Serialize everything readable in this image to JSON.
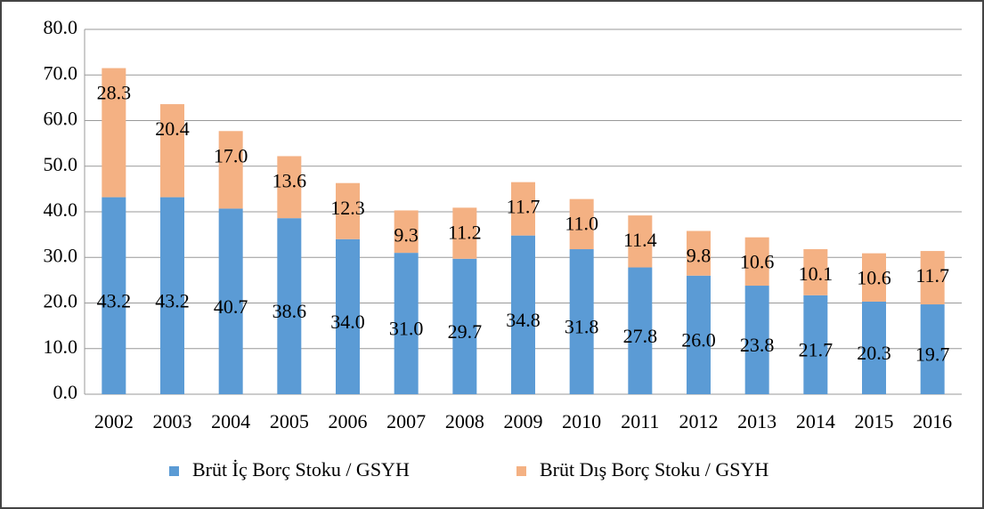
{
  "chart_data": {
    "type": "stacked_bar",
    "categories": [
      "2002",
      "2003",
      "2004",
      "2005",
      "2006",
      "2007",
      "2008",
      "2009",
      "2010",
      "2011",
      "2012",
      "2013",
      "2014",
      "2015",
      "2016"
    ],
    "series": [
      {
        "name": "Brüt İç Borç Stoku / GSYH",
        "color": "#5b9bd5",
        "values": [
          43.2,
          43.2,
          40.7,
          38.6,
          34.0,
          31.0,
          29.7,
          34.8,
          31.8,
          27.8,
          26.0,
          23.8,
          21.7,
          20.3,
          19.7
        ],
        "value_labels": [
          "43.2",
          "43.2",
          "40.7",
          "38.6",
          "34.0",
          "31.0",
          "29.7",
          "34.8",
          "31.8",
          "27.8",
          "26.0",
          "23.8",
          "21.7",
          "20.3",
          "19.7"
        ]
      },
      {
        "name": "Brüt Dış Borç Stoku / GSYH",
        "color": "#f4b183",
        "values": [
          28.3,
          20.4,
          17.0,
          13.6,
          12.3,
          9.3,
          11.2,
          11.7,
          11.0,
          11.4,
          9.8,
          10.6,
          10.1,
          10.6,
          11.7
        ],
        "value_labels": [
          "28.3",
          "20.4",
          "17.0",
          "13.6",
          "12.3",
          "9.3",
          "11.2",
          "11.7",
          "11.0",
          "11.4",
          "9.8",
          "10.6",
          "10.1",
          "10.6",
          "11.7"
        ]
      }
    ],
    "ylim": [
      0,
      80
    ],
    "yticks": [
      {
        "value": 0,
        "label": "0.0"
      },
      {
        "value": 10,
        "label": "10.0"
      },
      {
        "value": 20,
        "label": "20.0"
      },
      {
        "value": 30,
        "label": "30.0"
      },
      {
        "value": 40,
        "label": "40.0"
      },
      {
        "value": 50,
        "label": "50.0"
      },
      {
        "value": 60,
        "label": "60.0"
      },
      {
        "value": 70,
        "label": "70.0"
      },
      {
        "value": 80,
        "label": "80.0"
      }
    ],
    "grid": true,
    "legend": "bottom"
  }
}
